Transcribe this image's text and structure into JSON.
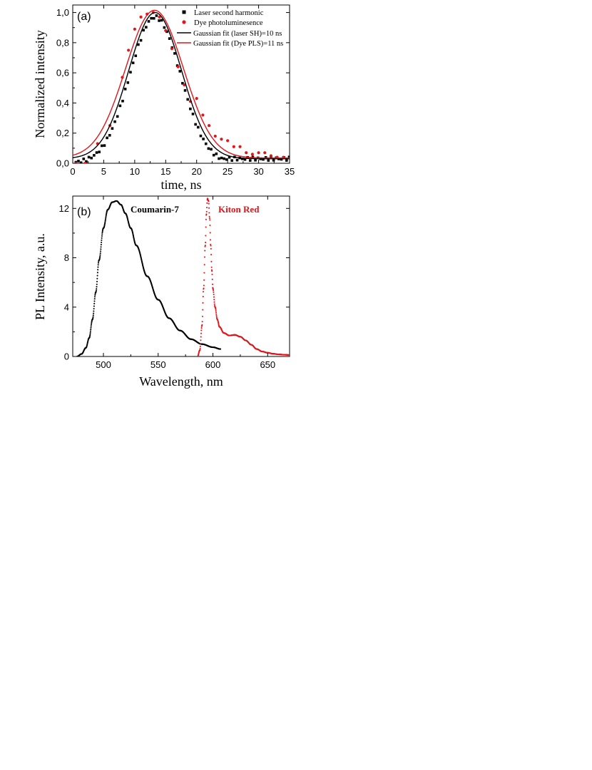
{
  "colors": {
    "black": "#000000",
    "red": "#e0161b"
  },
  "chart_data": [
    {
      "type": "scatter",
      "panel_label": "(a)",
      "xlabel": "time, ns",
      "ylabel": "Normalized intensity",
      "xlim": [
        0,
        35
      ],
      "ylim": [
        0,
        1.05
      ],
      "xticks": [
        0,
        5,
        10,
        15,
        20,
        25,
        30,
        35
      ],
      "xtick_labels": [
        "0",
        "5",
        "10",
        "15",
        "20",
        "25",
        "30",
        "35"
      ],
      "yticks": [
        0,
        0.2,
        0.4,
        0.6,
        0.8,
        1.0
      ],
      "ytick_labels": [
        "0,0",
        "0,2",
        "0,4",
        "0,6",
        "0,8",
        "1,0"
      ],
      "grid": false,
      "legend_position": "top-right",
      "series": [
        {
          "name": "Laser second harmonic",
          "kind": "square-markers",
          "color": "#000000",
          "model": {
            "amplitude": 0.97,
            "center": 13.3,
            "fwhm": 9.6,
            "baseline": 0.0,
            "tail_level": 0.03,
            "x_start": 0.5,
            "x_end": 35,
            "step": 0.42
          }
        },
        {
          "name": "Dye photoluminesence",
          "kind": "circle-markers",
          "color": "#e0161b",
          "x": [
            0.5,
            2,
            4,
            6,
            8,
            9,
            10,
            11,
            12,
            13,
            14,
            15,
            16,
            17,
            18,
            19,
            20,
            21,
            22,
            23,
            24,
            25,
            26,
            27,
            28,
            29,
            30,
            31,
            32,
            33,
            34
          ],
          "y": [
            0.0,
            0.0,
            0.13,
            0.25,
            0.57,
            0.75,
            0.89,
            0.97,
            0.99,
            1.0,
            0.97,
            0.88,
            0.76,
            0.64,
            0.52,
            0.41,
            0.43,
            0.32,
            0.25,
            0.18,
            0.16,
            0.15,
            0.11,
            0.11,
            0.07,
            0.06,
            0.07,
            0.07,
            0.05,
            0.04,
            0.04
          ]
        },
        {
          "name": "Gaussian fit (laser SH)=10 ns",
          "kind": "line",
          "color": "#000000",
          "model": {
            "amplitude": 0.97,
            "center": 13.3,
            "fwhm": 10,
            "baseline": 0.03
          }
        },
        {
          "name": "Gaussian fit (Dye PLS)=11 ns",
          "kind": "line",
          "color": "#e0161b",
          "model": {
            "amplitude": 0.98,
            "center": 13.2,
            "fwhm": 11,
            "baseline": 0.035
          }
        }
      ]
    },
    {
      "type": "scatter",
      "panel_label": "(b)",
      "xlabel": "Wavelength, nm",
      "ylabel": "PL Intensity, a.u.",
      "xlim": [
        472,
        670
      ],
      "ylim": [
        0,
        13
      ],
      "xticks": [
        500,
        550,
        600,
        650
      ],
      "xtick_labels": [
        "500",
        "550",
        "600",
        "650"
      ],
      "yticks": [
        0,
        4,
        8,
        12
      ],
      "ytick_labels": [
        "0",
        "4",
        "8",
        "12"
      ],
      "grid": false,
      "series": [
        {
          "name": "Coumarin-7",
          "kind": "dense-dots",
          "color": "#000000",
          "x": [
            476,
            480,
            484,
            487,
            490,
            493,
            496,
            500,
            504,
            508,
            512,
            516,
            520,
            525,
            530,
            540,
            550,
            560,
            570,
            580,
            590,
            600,
            607
          ],
          "y": [
            0.0,
            0.2,
            0.7,
            1.5,
            3.0,
            5.2,
            7.8,
            10.4,
            11.9,
            12.5,
            12.6,
            12.3,
            11.6,
            10.4,
            9.0,
            6.5,
            4.6,
            3.1,
            2.1,
            1.4,
            1.0,
            0.75,
            0.6
          ]
        },
        {
          "name": "Kiton Red",
          "kind": "dense-dots",
          "color": "#e0161b",
          "x": [
            586,
            588,
            590,
            591.5,
            593,
            594,
            595,
            596,
            597,
            598,
            599,
            600,
            602,
            604,
            606,
            610,
            615,
            620,
            625,
            630,
            635,
            640,
            645,
            650,
            655,
            660,
            665,
            670
          ],
          "y": [
            0.0,
            0.5,
            2.5,
            5.5,
            9.0,
            11.5,
            12.8,
            12.6,
            11.2,
            9.0,
            7.0,
            5.5,
            4.0,
            3.0,
            2.4,
            1.9,
            1.7,
            1.75,
            1.6,
            1.3,
            0.95,
            0.6,
            0.4,
            0.3,
            0.22,
            0.17,
            0.14,
            0.12
          ]
        }
      ]
    }
  ]
}
